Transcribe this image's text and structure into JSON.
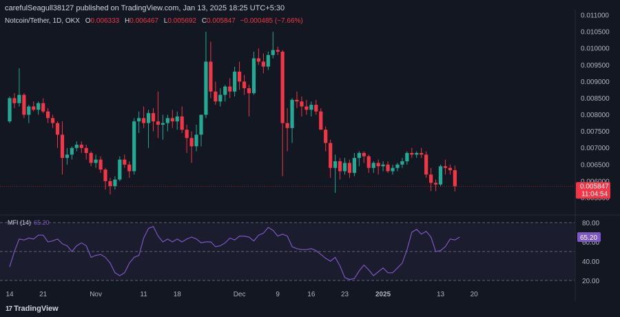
{
  "header": {
    "published": "carefulSeagull38127 published on TradingView.com, Jan 13, 2025 18:25 UTC+5:30",
    "symbol": "Notcoin/Tether, 1D, OKX",
    "open_label": "O",
    "open": "0.006333",
    "high_label": "H",
    "high": "0.006467",
    "low_label": "L",
    "low": "0.005692",
    "close_label": "C",
    "close": "0.005847",
    "change": "−0.000485 (−7.66%)"
  },
  "price_badge": {
    "price": "0.005847",
    "countdown": "11:04:54"
  },
  "indicator": {
    "label": "MFI (14)",
    "value": "65.20"
  },
  "footer": {
    "brand": "TradingView",
    "logo_mark": "17"
  },
  "colors": {
    "background": "#131722",
    "up": "#22ab94",
    "down": "#f23645",
    "mfi_line": "#7e57c2",
    "mfi_band": "#7e57c2",
    "text": "#d1d4dc"
  },
  "chart_data": [
    {
      "type": "candlestick",
      "title": "Notcoin/Tether, 1D, OKX",
      "ylim": [
        0.0055,
        0.011
      ],
      "yticks": [
        "0.011000",
        "0.010500",
        "0.010000",
        "0.009500",
        "0.009000",
        "0.008500",
        "0.008000",
        "0.007500",
        "0.007000",
        "0.006500",
        "0.006000",
        "0.005500"
      ],
      "xlabels": [
        {
          "day": 0,
          "label": "14",
          "bold": false
        },
        {
          "day": 7,
          "label": "21",
          "bold": false
        },
        {
          "day": 18,
          "label": "Nov",
          "bold": false
        },
        {
          "day": 28,
          "label": "11",
          "bold": false
        },
        {
          "day": 35,
          "label": "18",
          "bold": false
        },
        {
          "day": 48,
          "label": "Dec",
          "bold": false
        },
        {
          "day": 56,
          "label": "9",
          "bold": false
        },
        {
          "day": 63,
          "label": "16",
          "bold": false
        },
        {
          "day": 70,
          "label": "23",
          "bold": false
        },
        {
          "day": 78,
          "label": "2025",
          "bold": true
        },
        {
          "day": 90,
          "label": "13",
          "bold": false
        },
        {
          "day": 97,
          "label": "20",
          "bold": false
        }
      ],
      "candles": [
        [
          0.0078,
          0.00855,
          0.00775,
          0.0085
        ],
        [
          0.0085,
          0.00865,
          0.0082,
          0.00835
        ],
        [
          0.00835,
          0.0094,
          0.00825,
          0.0086
        ],
        [
          0.0086,
          0.00865,
          0.0079,
          0.008
        ],
        [
          0.008,
          0.0083,
          0.00775,
          0.00825
        ],
        [
          0.00825,
          0.0084,
          0.0081,
          0.00815
        ],
        [
          0.00815,
          0.0084,
          0.008,
          0.00835
        ],
        [
          0.00835,
          0.0085,
          0.00805,
          0.0081
        ],
        [
          0.0081,
          0.0082,
          0.00775,
          0.0079
        ],
        [
          0.0079,
          0.008,
          0.0076,
          0.00775
        ],
        [
          0.00775,
          0.0078,
          0.007,
          0.0074
        ],
        [
          0.0074,
          0.0078,
          0.0062,
          0.0067
        ],
        [
          0.0067,
          0.007,
          0.0065,
          0.0068
        ],
        [
          0.0068,
          0.00705,
          0.00665,
          0.007
        ],
        [
          0.007,
          0.0072,
          0.0069,
          0.0071
        ],
        [
          0.0071,
          0.0072,
          0.00685,
          0.007
        ],
        [
          0.007,
          0.0071,
          0.00665,
          0.00685
        ],
        [
          0.00685,
          0.0069,
          0.00645,
          0.00655
        ],
        [
          0.00655,
          0.0068,
          0.0064,
          0.00665
        ],
        [
          0.00665,
          0.00675,
          0.00625,
          0.00635
        ],
        [
          0.00635,
          0.0064,
          0.00575,
          0.006
        ],
        [
          0.006,
          0.0061,
          0.0056,
          0.00585
        ],
        [
          0.00585,
          0.00615,
          0.00575,
          0.00605
        ],
        [
          0.00605,
          0.00675,
          0.006,
          0.00665
        ],
        [
          0.00665,
          0.0068,
          0.0064,
          0.0065
        ],
        [
          0.0065,
          0.0066,
          0.0061,
          0.0063
        ],
        [
          0.0063,
          0.0079,
          0.0062,
          0.0078
        ],
        [
          0.0078,
          0.0081,
          0.00745,
          0.0079
        ],
        [
          0.0079,
          0.00825,
          0.0076,
          0.00775
        ],
        [
          0.00775,
          0.00815,
          0.007,
          0.00805
        ],
        [
          0.00805,
          0.0082,
          0.0075,
          0.0078
        ],
        [
          0.0078,
          0.0087,
          0.0073,
          0.0077
        ],
        [
          0.0077,
          0.008,
          0.00725,
          0.00775
        ],
        [
          0.00775,
          0.008,
          0.0075,
          0.0079
        ],
        [
          0.0079,
          0.00815,
          0.0076,
          0.0078
        ],
        [
          0.0078,
          0.0081,
          0.00755,
          0.00795
        ],
        [
          0.00795,
          0.00825,
          0.00745,
          0.00755
        ],
        [
          0.00755,
          0.0077,
          0.00685,
          0.0073
        ],
        [
          0.0073,
          0.0075,
          0.00655,
          0.00705
        ],
        [
          0.00705,
          0.0077,
          0.0069,
          0.0074
        ],
        [
          0.0074,
          0.008,
          0.00705,
          0.008
        ],
        [
          0.008,
          0.0105,
          0.0079,
          0.0096
        ],
        [
          0.0096,
          0.0102,
          0.0085,
          0.0087
        ],
        [
          0.0087,
          0.009,
          0.0083,
          0.0084
        ],
        [
          0.0084,
          0.0088,
          0.00825,
          0.0086
        ],
        [
          0.0086,
          0.0089,
          0.0084,
          0.00885
        ],
        [
          0.00885,
          0.0091,
          0.0085,
          0.0087
        ],
        [
          0.0087,
          0.00945,
          0.00855,
          0.0093
        ],
        [
          0.0093,
          0.0096,
          0.00875,
          0.009
        ],
        [
          0.009,
          0.0092,
          0.0086,
          0.0088
        ],
        [
          0.0088,
          0.0089,
          0.00795,
          0.00865
        ],
        [
          0.00865,
          0.0099,
          0.0086,
          0.0097
        ],
        [
          0.0097,
          0.01,
          0.0095,
          0.0096
        ],
        [
          0.0096,
          0.00985,
          0.00925,
          0.00945
        ],
        [
          0.00945,
          0.0099,
          0.00935,
          0.0098
        ],
        [
          0.0098,
          0.0105,
          0.0097,
          0.00995
        ],
        [
          0.00995,
          0.01005,
          0.0098,
          0.0099
        ],
        [
          0.0099,
          0.00995,
          0.00615,
          0.00775
        ],
        [
          0.00775,
          0.0082,
          0.0069,
          0.0076
        ],
        [
          0.0076,
          0.0085,
          0.00715,
          0.00845
        ],
        [
          0.00845,
          0.0087,
          0.0082,
          0.0084
        ],
        [
          0.0084,
          0.00855,
          0.00795,
          0.00825
        ],
        [
          0.00825,
          0.00845,
          0.008,
          0.00815
        ],
        [
          0.00815,
          0.0084,
          0.00795,
          0.0083
        ],
        [
          0.0083,
          0.00845,
          0.008,
          0.0081
        ],
        [
          0.0081,
          0.0082,
          0.0076,
          0.00755
        ],
        [
          0.00755,
          0.00765,
          0.0069,
          0.00715
        ],
        [
          0.00715,
          0.00725,
          0.0061,
          0.0064
        ],
        [
          0.0064,
          0.0068,
          0.00565,
          0.0066
        ],
        [
          0.0066,
          0.0067,
          0.00605,
          0.0063
        ],
        [
          0.0063,
          0.0067,
          0.0062,
          0.00655
        ],
        [
          0.00655,
          0.00665,
          0.0061,
          0.00625
        ],
        [
          0.00625,
          0.00685,
          0.00615,
          0.0067
        ],
        [
          0.0067,
          0.0069,
          0.00645,
          0.00685
        ],
        [
          0.00685,
          0.0069,
          0.00655,
          0.00675
        ],
        [
          0.00675,
          0.0068,
          0.00625,
          0.0064
        ],
        [
          0.0064,
          0.0066,
          0.00625,
          0.00655
        ],
        [
          0.00655,
          0.00665,
          0.0062,
          0.00645
        ],
        [
          0.00645,
          0.0066,
          0.0063,
          0.0065
        ],
        [
          0.0065,
          0.0066,
          0.00625,
          0.0063
        ],
        [
          0.0063,
          0.0065,
          0.0062,
          0.0064
        ],
        [
          0.0064,
          0.00655,
          0.0063,
          0.0065
        ],
        [
          0.0065,
          0.0067,
          0.0064,
          0.0066
        ],
        [
          0.0066,
          0.0069,
          0.0065,
          0.00685
        ],
        [
          0.00685,
          0.007,
          0.0067,
          0.0068
        ],
        [
          0.0068,
          0.0069,
          0.0067,
          0.00685
        ],
        [
          0.00685,
          0.007,
          0.0067,
          0.0068
        ],
        [
          0.0068,
          0.0069,
          0.0061,
          0.0062
        ],
        [
          0.0062,
          0.0064,
          0.0057,
          0.00595
        ],
        [
          0.00595,
          0.00605,
          0.0057,
          0.0059
        ],
        [
          0.0059,
          0.0065,
          0.00585,
          0.00645
        ],
        [
          0.00645,
          0.00665,
          0.0062,
          0.0064
        ],
        [
          0.0064,
          0.0065,
          0.0062,
          0.00633
        ],
        [
          0.006333,
          0.006467,
          0.005692,
          0.005847
        ]
      ]
    },
    {
      "type": "line",
      "title": "MFI (14)",
      "ylim": [
        14,
        84
      ],
      "yticks": [
        "80.00",
        "60.00",
        "40.00",
        "20.00"
      ],
      "bands": [
        80,
        50,
        20
      ],
      "series": [
        {
          "name": "MFI (14)",
          "values": [
            34,
            50,
            63,
            62,
            64,
            63,
            67,
            67,
            60,
            61,
            63,
            58,
            56,
            50,
            56,
            59,
            56,
            44,
            46,
            47,
            44,
            38,
            28,
            25,
            28,
            38,
            44,
            46,
            64,
            74,
            76,
            66,
            60,
            63,
            60,
            63,
            60,
            63,
            65,
            63,
            59,
            60,
            60,
            55,
            56,
            59,
            64,
            62,
            66,
            66,
            65,
            61,
            67,
            69,
            75,
            72,
            66,
            68,
            66,
            55,
            53,
            52,
            52,
            53,
            51,
            47,
            43,
            40,
            44,
            35,
            23,
            21,
            22,
            30,
            36,
            31,
            25,
            29,
            33,
            28,
            28,
            33,
            38,
            52,
            70,
            73,
            68,
            71,
            65,
            50,
            51,
            55,
            63,
            62,
            65
          ]
        }
      ]
    }
  ]
}
